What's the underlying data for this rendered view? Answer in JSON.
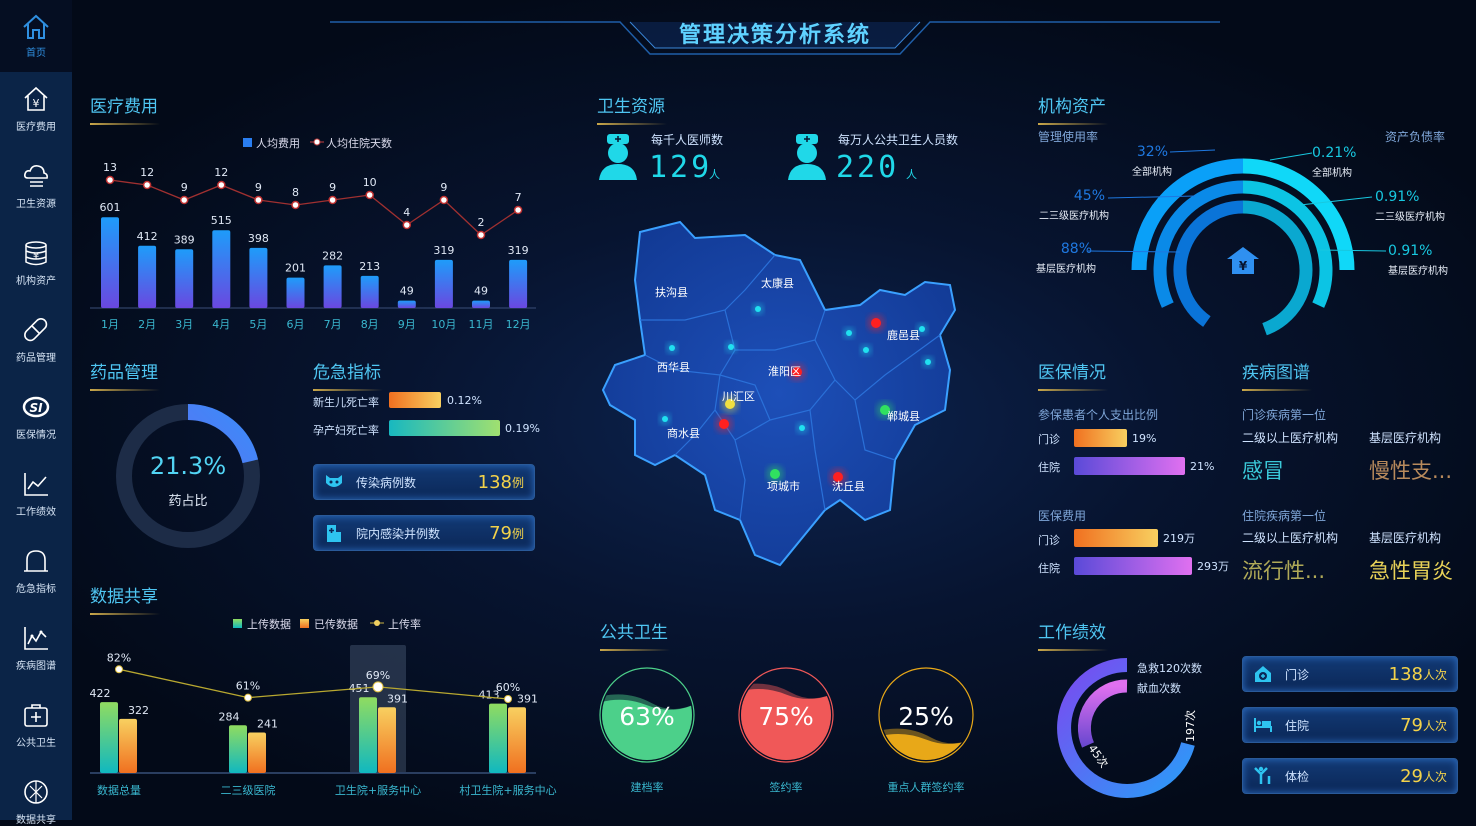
{
  "title": "管理决策分析系统",
  "sidebar": {
    "home": "首页",
    "items": [
      {
        "label": "医疗费用",
        "icon": "house-yuan-icon"
      },
      {
        "label": "卫生资源",
        "icon": "cloud-icon"
      },
      {
        "label": "机构资产",
        "icon": "coin-stack-icon"
      },
      {
        "label": "药品管理",
        "icon": "pill-icon"
      },
      {
        "label": "医保情况",
        "icon": "si-logo-icon"
      },
      {
        "label": "工作绩效",
        "icon": "line-chart-icon"
      },
      {
        "label": "危急指标",
        "icon": "bell-icon"
      },
      {
        "label": "疾病图谱",
        "icon": "trend-chart-icon"
      },
      {
        "label": "公共卫生",
        "icon": "medical-kit-icon"
      },
      {
        "label": "数据共享",
        "icon": "share-icon"
      }
    ]
  },
  "medical_cost": {
    "title": "医疗费用"
  },
  "drug": {
    "title": "药品管理",
    "ratio": "21.3%",
    "ratio_value": 21.3,
    "label": "药占比"
  },
  "crisis": {
    "title": "危急指标",
    "rates": [
      {
        "label": "新生儿死亡率",
        "value": "0.12%"
      },
      {
        "label": "孕产妇死亡率",
        "value": "0.19%"
      }
    ],
    "cards": [
      {
        "label": "传染病例数",
        "value": "138",
        "unit": "例",
        "icon": "virus-mask-icon"
      },
      {
        "label": "院内感染并例数",
        "value": "79",
        "unit": "例",
        "icon": "hospital-icon"
      }
    ]
  },
  "data_share": {
    "title": "数据共享"
  },
  "health_resources": {
    "title": "卫生资源",
    "stats": [
      {
        "label": "每千人医师数",
        "value": "129",
        "unit": "人",
        "icon": "doctor-icon"
      },
      {
        "label": "每万人公共卫生人员数",
        "value": "220",
        "unit": "人",
        "icon": "nurse-icon"
      }
    ]
  },
  "map": {
    "counties": [
      "扶沟县",
      "太康县",
      "西华县",
      "淮阳区",
      "鹿邑县",
      "川汇区",
      "商水县",
      "郸城县",
      "项城市",
      "沈丘县"
    ]
  },
  "public_health": {
    "title": "公共卫生",
    "gauges": [
      {
        "label": "建档率",
        "value": "63%",
        "pct": 63,
        "color": "#4cd08a"
      },
      {
        "label": "签约率",
        "value": "75%",
        "pct": 75,
        "color": "#f05858"
      },
      {
        "label": "重点人群签约率",
        "value": "25%",
        "pct": 25,
        "color": "#e8a818"
      }
    ]
  },
  "assets": {
    "title": "机构资产",
    "left_title": "管理使用率",
    "right_title": "资产负债率",
    "left": [
      {
        "value": "32%",
        "label": "全部机构"
      },
      {
        "value": "45%",
        "label": "二三级医疗机构"
      },
      {
        "value": "88%",
        "label": "基层医疗机构"
      }
    ],
    "right": [
      {
        "value": "0.21%",
        "label": "全部机构"
      },
      {
        "value": "0.91%",
        "label": "二三级医疗机构"
      },
      {
        "value": "0.91%",
        "label": "基层医疗机构"
      }
    ]
  },
  "insurance": {
    "title": "医保情况",
    "ratio_title": "参保患者个人支出比例",
    "ratio": [
      {
        "label": "门诊",
        "value": "19%"
      },
      {
        "label": "住院",
        "value": "21%"
      }
    ],
    "cost_title": "医保费用",
    "cost": [
      {
        "label": "门诊",
        "value": "219万"
      },
      {
        "label": "住院",
        "value": "293万"
      }
    ]
  },
  "disease": {
    "title": "疾病图谱",
    "outpatient_title": "门诊疾病第一位",
    "inpatient_title": "住院疾病第一位",
    "col1": "二级以上医疗机构",
    "col2": "基层医疗机构",
    "outpatient": [
      "感冒",
      "慢性支..."
    ],
    "inpatient": [
      "流行性...",
      "急性胃炎"
    ]
  },
  "performance": {
    "title": "工作绩效",
    "legend": [
      "急救120次数",
      "献血次数"
    ],
    "outer_value": "197次",
    "inner_value": "45次",
    "cards": [
      {
        "label": "门诊",
        "value": "138",
        "unit": "人次",
        "icon": "clinic-icon"
      },
      {
        "label": "住院",
        "value": "79",
        "unit": "人次",
        "icon": "bed-icon"
      },
      {
        "label": "体检",
        "value": "29",
        "unit": "人次",
        "icon": "checkup-icon"
      }
    ]
  },
  "chart_data": [
    {
      "type": "bar",
      "categories": [
        "1月",
        "2月",
        "3月",
        "4月",
        "5月",
        "6月",
        "7月",
        "8月",
        "9月",
        "10月",
        "11月",
        "12月"
      ],
      "series": [
        {
          "name": "人均费用",
          "type": "bar",
          "values": [
            601,
            412,
            389,
            515,
            398,
            201,
            282,
            213,
            49,
            319,
            49,
            319
          ]
        },
        {
          "name": "人均住院天数",
          "type": "line",
          "values": [
            13,
            12,
            9,
            12,
            9,
            8,
            9,
            10,
            4,
            9,
            2,
            7
          ]
        }
      ],
      "legend": "top"
    },
    {
      "type": "bar",
      "categories": [
        "数据总量",
        "二三级医院",
        "卫生院+服务中心",
        "村卫生院+服务中心"
      ],
      "series": [
        {
          "name": "上传数据",
          "type": "bar",
          "values": [
            422,
            284,
            451,
            413
          ]
        },
        {
          "name": "已传数据",
          "type": "bar",
          "values": [
            322,
            241,
            391,
            391
          ]
        },
        {
          "name": "上传率",
          "type": "line",
          "values": [
            82,
            61,
            69,
            60
          ],
          "labels": [
            "82%",
            "61%",
            "69%",
            "60%"
          ]
        }
      ],
      "legend": "top",
      "highlight": "卫生院+服务中心"
    }
  ]
}
